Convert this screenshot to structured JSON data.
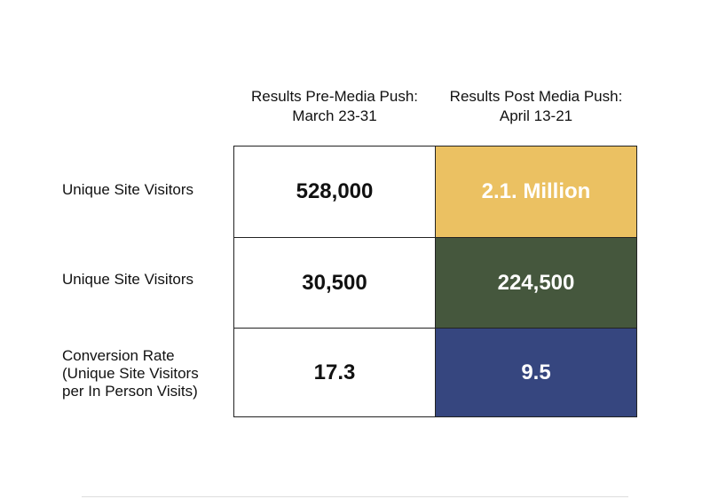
{
  "chart_data": {
    "type": "table",
    "columns": [
      {
        "header_line1": "Results Pre-Media Push:",
        "header_line2": "March 23-31"
      },
      {
        "header_line1": "Results Post Media Push:",
        "header_line2": "April 13-21"
      }
    ],
    "rows": [
      {
        "label_lines": [
          "Unique Site Visitors"
        ],
        "pre": "528,000",
        "post": "2.1. Million",
        "post_color": "#ebc162"
      },
      {
        "label_lines": [
          "Unique Site Visitors"
        ],
        "pre": "30,500",
        "post": "224,500",
        "post_color": "#45573d"
      },
      {
        "label_lines": [
          "Conversion Rate",
          "(Unique Site Visitors",
          "per In Person Visits)"
        ],
        "pre": "17.3",
        "post": "9.5",
        "post_color": "#36467f"
      }
    ]
  }
}
